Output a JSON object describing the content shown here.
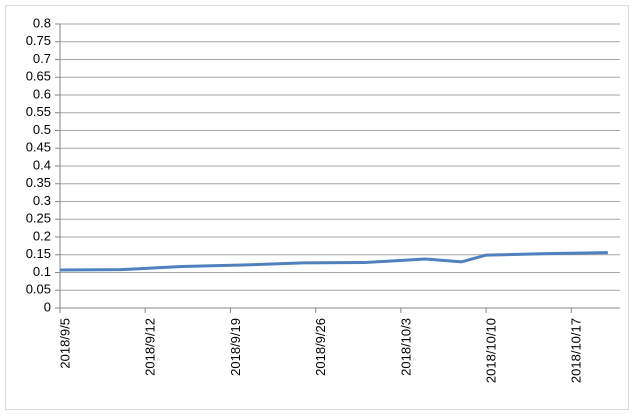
{
  "chart_data": {
    "type": "line",
    "x": [
      "2018/9/5",
      "2018/9/10",
      "2018/9/15",
      "2018/9/20",
      "2018/9/25",
      "2018/9/30",
      "2018/10/5",
      "2018/10/8",
      "2018/10/10",
      "2018/10/15",
      "2018/10/20"
    ],
    "series": [
      {
        "color": "#4f81bd",
        "values": [
          0.107,
          0.108,
          0.117,
          0.121,
          0.127,
          0.128,
          0.138,
          0.13,
          0.149,
          0.153,
          0.156
        ]
      }
    ],
    "xlim": [
      "2018/9/5",
      "2018/10/21"
    ],
    "xticks": [
      "2018/9/5",
      "2018/9/12",
      "2018/9/19",
      "2018/9/26",
      "2018/10/3",
      "2018/10/10",
      "2018/10/17"
    ],
    "ylim": [
      0,
      0.8
    ],
    "yticks": [
      0,
      0.05,
      0.1,
      0.15,
      0.2,
      0.25,
      0.3,
      0.35,
      0.4,
      0.45,
      0.5,
      0.55,
      0.6,
      0.65,
      0.7,
      0.75,
      0.8
    ],
    "grid": true
  }
}
